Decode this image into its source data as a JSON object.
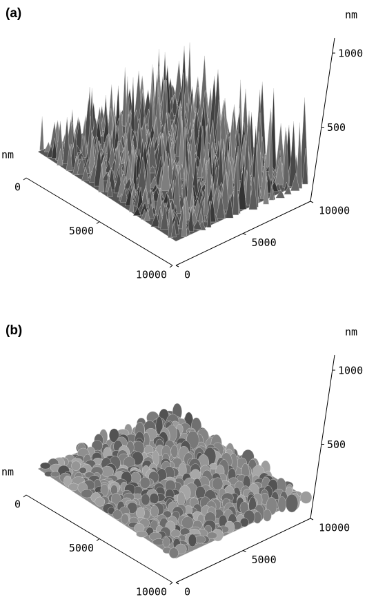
{
  "panels": [
    {
      "label": "(a)",
      "height_unit": "nm",
      "left_unit": "nm",
      "left_ticks": [
        0,
        5000,
        10000
      ],
      "right_ticks": [
        0,
        5000,
        10000
      ],
      "height_ticks": [
        500,
        1000
      ]
    },
    {
      "label": "(b)",
      "height_unit": "nm",
      "left_unit": "nm",
      "left_ticks": [
        0,
        5000,
        10000
      ],
      "right_ticks": [
        0,
        5000,
        10000
      ],
      "height_ticks": [
        500,
        1000
      ]
    }
  ]
}
